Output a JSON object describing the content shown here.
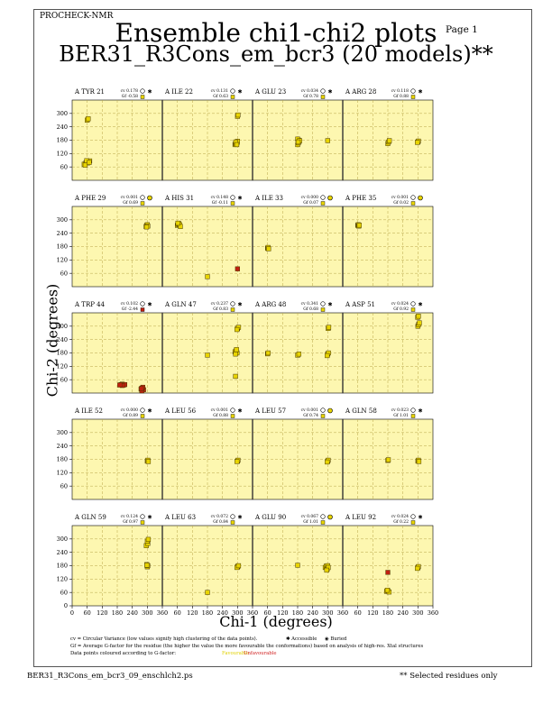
{
  "header": {
    "program": "PROCHECK-NMR",
    "page": "Page  1",
    "title_line1": "Ensemble chi1-chi2 plots",
    "title_line2": "BER31_R3Cons_em_bcr3 (20 models)**"
  },
  "footer": {
    "filename": "BER31_R3Cons_em_bcr3_09_enschlch2.ps",
    "note": "** Selected residues only"
  },
  "legend": {
    "cv_text": "cv = Circular Variance (low values signify high clustering of the data points).",
    "accessible": "Accessible",
    "buried": "Buried",
    "gf_text": "Gf = Average G-factor for the residue (the higher the value the more favourable the conformations) based on analysis of high-res. Xtal structures",
    "colour_text": "Data points coloured according to G-factor:",
    "favourable": "Favourable",
    "unfavourable": "Unfavourable"
  },
  "colors": {
    "panel_bg": "#fdf7b0",
    "favourable": "#e8d400",
    "unfavourable": "#c02010",
    "grid": "#b9a64a"
  },
  "chart_data": {
    "type": "scatter",
    "xlabel": "Chi-1 (degrees)",
    "ylabel": "Chi-2 (degrees)",
    "xlim": [
      0,
      360
    ],
    "ylim": [
      0,
      360
    ],
    "xticks": [
      0,
      60,
      120,
      180,
      240,
      300,
      360
    ],
    "yticks": [
      0,
      60,
      120,
      180,
      240,
      300
    ],
    "grid": true,
    "panels": [
      {
        "label": "A TYR 21",
        "cv": "cv 0.178",
        "gf": "Gf -0.58",
        "gfcolor": "fav",
        "acc": "accessible",
        "points": [
          [
            48,
            72
          ],
          [
            55,
            78
          ],
          [
            60,
            82
          ],
          [
            65,
            85
          ],
          [
            70,
            87
          ],
          [
            62,
            78
          ],
          [
            52,
            68
          ],
          [
            58,
            88
          ],
          [
            68,
            80
          ],
          [
            60,
            270
          ],
          [
            64,
            276
          ]
        ]
      },
      {
        "label": "A ILE 22",
        "cv": "cv 0.131",
        "gf": "Gf 0.63",
        "gfcolor": "fav",
        "acc": "accessible",
        "points": [
          [
            290,
            160
          ],
          [
            292,
            165
          ],
          [
            295,
            170
          ],
          [
            298,
            168
          ],
          [
            300,
            175
          ],
          [
            293,
            172
          ],
          [
            297,
            160
          ],
          [
            300,
            287
          ],
          [
            302,
            293
          ]
        ]
      },
      {
        "label": "A GLU 23",
        "cv": "cv 0.034",
        "gf": "Gf 0.78",
        "gfcolor": "fav",
        "acc": "accessible",
        "points": [
          [
            180,
            160
          ],
          [
            183,
            168
          ],
          [
            186,
            175
          ],
          [
            184,
            180
          ],
          [
            180,
            185
          ],
          [
            188,
            178
          ],
          [
            182,
            172
          ],
          [
            300,
            178
          ]
        ]
      },
      {
        "label": "A ARG 28",
        "cv": "cv 0.118",
        "gf": "Gf 0.88",
        "gfcolor": "fav",
        "acc": "accessible",
        "points": [
          [
            180,
            165
          ],
          [
            183,
            172
          ],
          [
            186,
            178
          ],
          [
            300,
            172
          ],
          [
            302,
            176
          ],
          [
            298,
            170
          ]
        ]
      },
      {
        "label": "A PHE 29",
        "cv": "cv 0.001",
        "gf": "Gf 0.69",
        "gfcolor": "fav",
        "acc": "buried",
        "points": [
          [
            295,
            270
          ],
          [
            298,
            275
          ],
          [
            300,
            278
          ],
          [
            302,
            272
          ],
          [
            297,
            268
          ]
        ]
      },
      {
        "label": "A HIS 31",
        "cv": "cv 0.148",
        "gf": "Gf -0.11",
        "gfcolor": "fav",
        "acc": "accessible",
        "points": [
          [
            60,
            275
          ],
          [
            63,
            280
          ],
          [
            66,
            283
          ],
          [
            69,
            278
          ],
          [
            72,
            270
          ],
          [
            62,
            285
          ],
          [
            180,
            45
          ],
          [
            300,
            80,
            "unfav"
          ]
        ]
      },
      {
        "label": "A ILE 33",
        "cv": "cv 0.000",
        "gf": "Gf 0.07",
        "gfcolor": "fav",
        "acc": "buried",
        "points": [
          [
            60,
            172
          ],
          [
            62,
            176
          ],
          [
            64,
            170
          ]
        ]
      },
      {
        "label": "A PHE 35",
        "cv": "cv 0.001",
        "gf": "Gf 0.02",
        "gfcolor": "fav",
        "acc": "buried",
        "points": [
          [
            60,
            275
          ],
          [
            62,
            278
          ],
          [
            64,
            272
          ],
          [
            66,
            276
          ]
        ]
      },
      {
        "label": "A TRP 44",
        "cv": "cv 0.102",
        "gf": "Gf -2.44",
        "gfcolor": "unfav",
        "acc": "accessible",
        "points": [
          [
            195,
            38,
            "unfav"
          ],
          [
            200,
            40,
            "unfav"
          ],
          [
            205,
            36,
            "unfav"
          ],
          [
            210,
            38,
            "unfav"
          ],
          [
            200,
            34,
            "unfav"
          ],
          [
            190,
            36,
            "unfav"
          ],
          [
            275,
            18,
            "unfav"
          ],
          [
            280,
            22,
            "unfav"
          ],
          [
            285,
            15,
            "unfav"
          ],
          [
            278,
            10,
            "unfav"
          ],
          [
            282,
            26,
            "unfav"
          ],
          [
            276,
            20,
            "unfav"
          ]
        ]
      },
      {
        "label": "A GLN 47",
        "cv": "cv 0.237",
        "gf": "Gf 0.83",
        "gfcolor": "fav",
        "acc": "accessible",
        "points": [
          [
            180,
            170
          ],
          [
            290,
            185
          ],
          [
            295,
            190
          ],
          [
            298,
            180
          ],
          [
            292,
            175
          ],
          [
            296,
            195
          ],
          [
            300,
            290
          ],
          [
            304,
            295
          ],
          [
            298,
            285
          ],
          [
            292,
            75
          ]
        ]
      },
      {
        "label": "A ARG 48",
        "cv": "cv 0.341",
        "gf": "Gf 0.68",
        "gfcolor": "fav",
        "acc": "accessible",
        "points": [
          [
            60,
            176
          ],
          [
            62,
            180
          ],
          [
            180,
            170
          ],
          [
            185,
            175
          ],
          [
            300,
            175
          ],
          [
            303,
            180
          ],
          [
            298,
            168
          ],
          [
            302,
            290
          ],
          [
            304,
            295
          ]
        ]
      },
      {
        "label": "A ASP 51",
        "cv": "cv 0.024",
        "gf": "Gf 0.92",
        "gfcolor": "fav",
        "acc": "accessible",
        "points": [
          [
            300,
            300
          ],
          [
            303,
            308
          ],
          [
            306,
            315
          ],
          [
            299,
            340
          ],
          [
            302,
            345
          ]
        ]
      },
      {
        "label": "A ILE 52",
        "cv": "cv 0.000",
        "gf": "Gf 0.89",
        "gfcolor": "fav",
        "acc": "accessible",
        "points": [
          [
            300,
            172
          ],
          [
            302,
            176
          ],
          [
            304,
            170
          ]
        ]
      },
      {
        "label": "A LEU 56",
        "cv": "cv 0.001",
        "gf": "Gf 0.88",
        "gfcolor": "fav",
        "acc": "accessible",
        "points": [
          [
            300,
            172
          ],
          [
            302,
            176
          ],
          [
            298,
            170
          ]
        ]
      },
      {
        "label": "A LEU 57",
        "cv": "cv 0.001",
        "gf": "Gf 0.74",
        "gfcolor": "fav",
        "acc": "buried",
        "points": [
          [
            300,
            172
          ],
          [
            302,
            176
          ],
          [
            298,
            168
          ]
        ]
      },
      {
        "label": "A GLN 58",
        "cv": "cv 0.023",
        "gf": "Gf 1.01",
        "gfcolor": "fav",
        "acc": "accessible",
        "points": [
          [
            180,
            175
          ],
          [
            182,
            178
          ],
          [
            300,
            172
          ],
          [
            302,
            176
          ],
          [
            304,
            170
          ]
        ]
      },
      {
        "label": "A GLN 59",
        "cv": "cv 0.124",
        "gf": "Gf 0.97",
        "gfcolor": "fav",
        "acc": "accessible",
        "points": [
          [
            300,
            175
          ],
          [
            302,
            180
          ],
          [
            298,
            185
          ],
          [
            296,
            270
          ],
          [
            302,
            280
          ],
          [
            300,
            290
          ],
          [
            304,
            298
          ],
          [
            298,
            182
          ]
        ]
      },
      {
        "label": "A LEU 63",
        "cv": "cv 0.072",
        "gf": "Gf 0.84",
        "gfcolor": "fav",
        "acc": "accessible",
        "points": [
          [
            180,
            60
          ],
          [
            300,
            175
          ],
          [
            302,
            178
          ],
          [
            298,
            172
          ],
          [
            304,
            180
          ]
        ]
      },
      {
        "label": "A GLU 90",
        "cv": "cv 0.067",
        "gf": "Gf 1.01",
        "gfcolor": "fav",
        "acc": "buried",
        "points": [
          [
            180,
            182
          ],
          [
            290,
            172
          ],
          [
            294,
            178
          ],
          [
            298,
            165
          ],
          [
            300,
            180
          ],
          [
            302,
            172
          ],
          [
            296,
            160
          ]
        ]
      },
      {
        "label": "A LEU 92",
        "cv": "cv 0.024",
        "gf": "Gf 0.22",
        "gfcolor": "fav",
        "acc": "accessible",
        "points": [
          [
            180,
            150,
            "unfav"
          ],
          [
            175,
            65
          ],
          [
            180,
            68
          ],
          [
            185,
            62
          ],
          [
            178,
            70
          ],
          [
            300,
            172
          ],
          [
            302,
            176
          ],
          [
            298,
            168
          ]
        ]
      }
    ]
  }
}
